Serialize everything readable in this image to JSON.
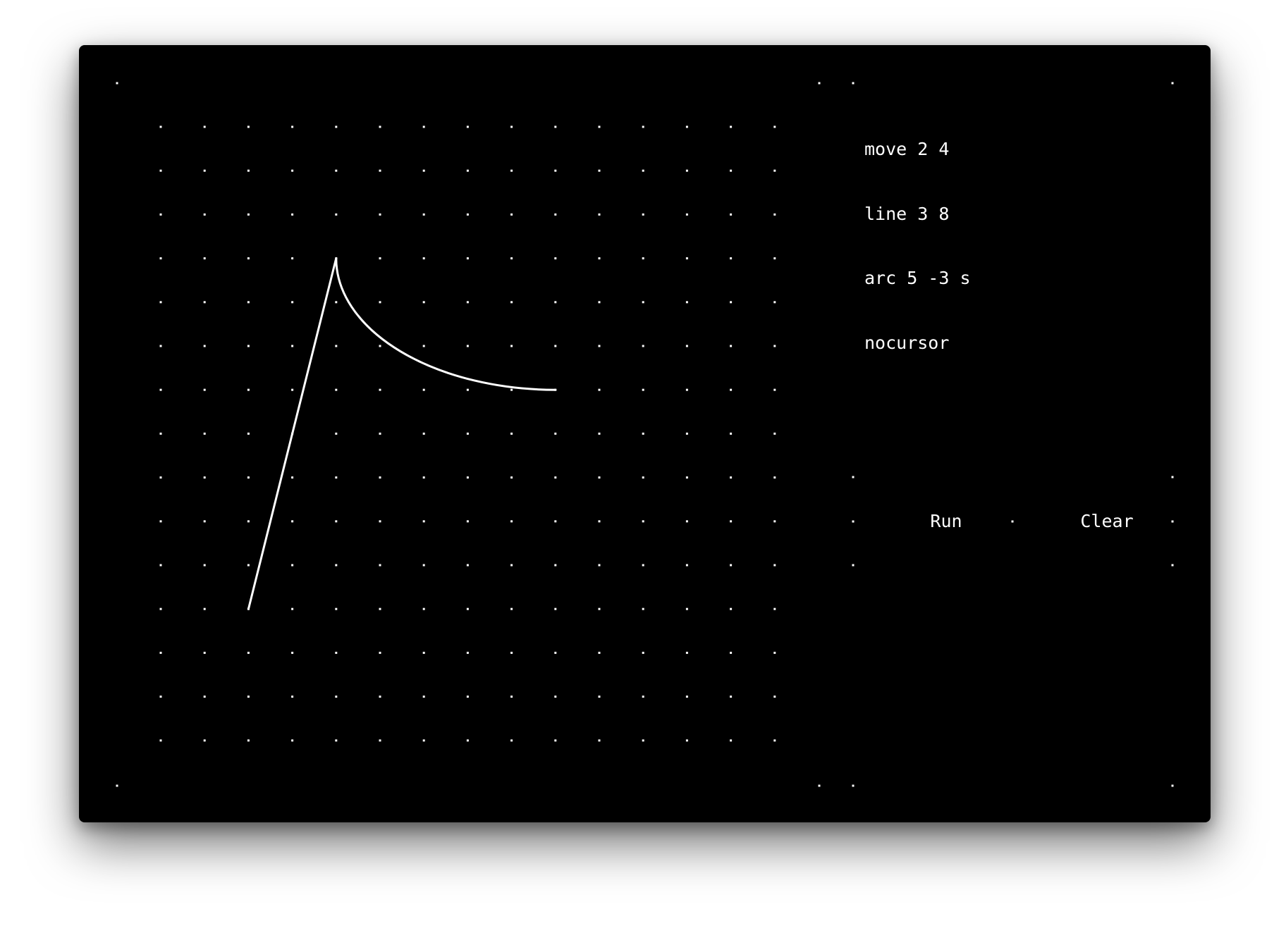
{
  "program": {
    "lines": [
      "move 2 4",
      "line 3 8",
      "arc 5 -3 s",
      "nocursor"
    ]
  },
  "controls": {
    "run_label": "Run",
    "clear_label": "Clear"
  },
  "plot": {
    "grid_columns": 15,
    "grid_rows": 15,
    "grid_x_origin_col": 1,
    "grid_y_origin_row": 11,
    "path": {
      "start": [
        1,
        0
      ],
      "line_to": [
        3,
        8
      ],
      "arc_to": [
        8,
        5
      ],
      "arc_style": "s"
    },
    "colors": {
      "background": "#000000",
      "foreground": "#ffffff"
    }
  }
}
